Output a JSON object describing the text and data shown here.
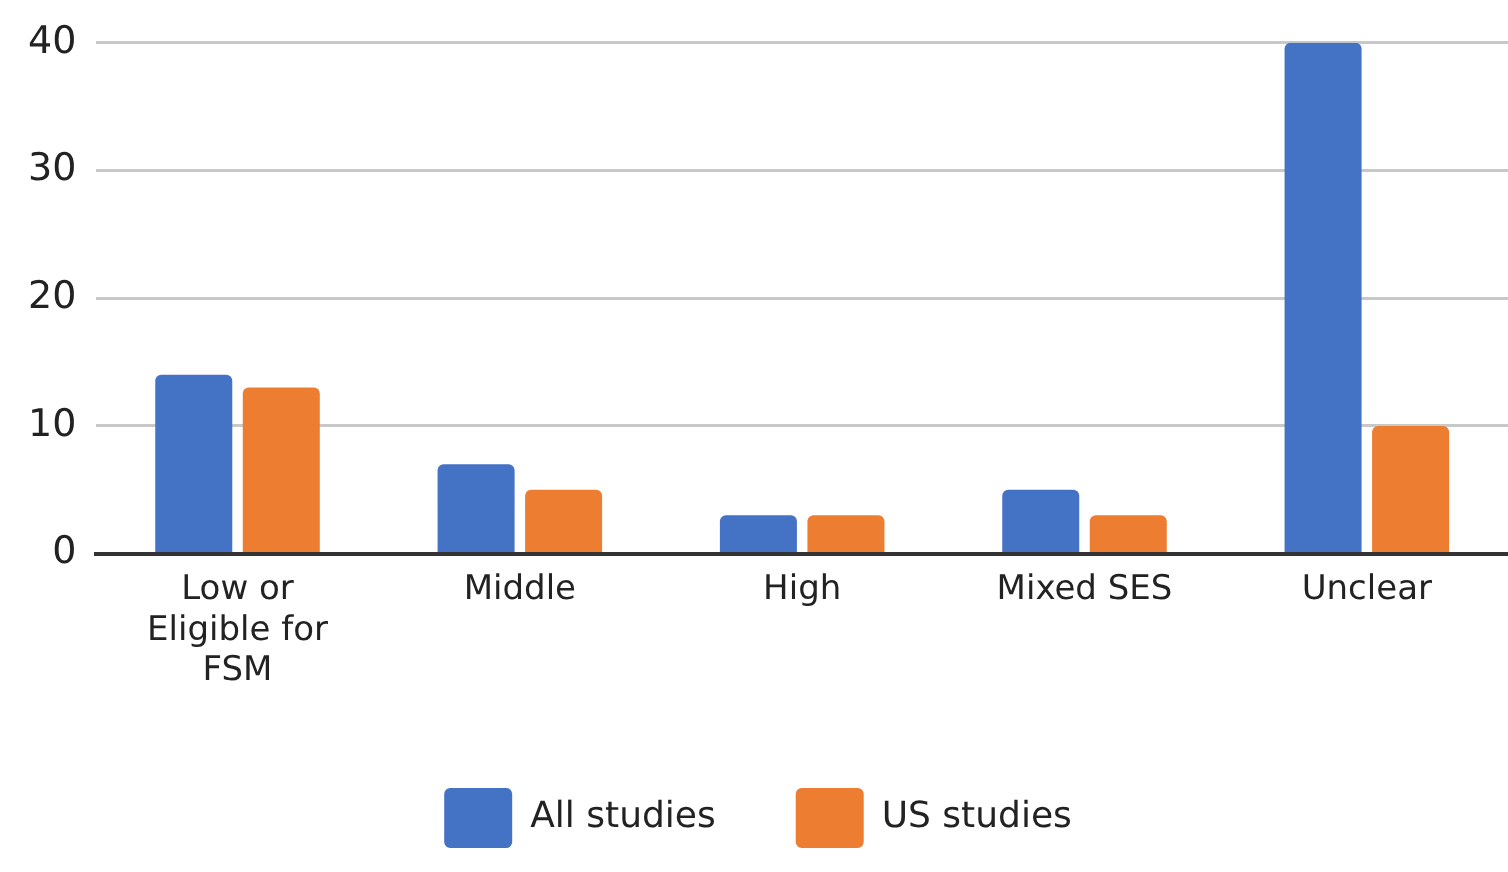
{
  "chart_data": {
    "type": "bar",
    "categories": [
      "Low or Eligible for FSM",
      "Middle",
      "High",
      "Mixed SES",
      "Unclear"
    ],
    "series": [
      {
        "name": "All studies",
        "color": "#4472c4",
        "values": [
          14,
          7,
          3,
          5,
          40
        ]
      },
      {
        "name": "US studies",
        "color": "#ed7d31",
        "values": [
          13,
          5,
          3,
          3,
          10
        ]
      }
    ],
    "ylim": [
      0,
      40
    ],
    "yticks": [
      0,
      10,
      20,
      30,
      40
    ],
    "grid": "y",
    "legend": "bottom"
  }
}
